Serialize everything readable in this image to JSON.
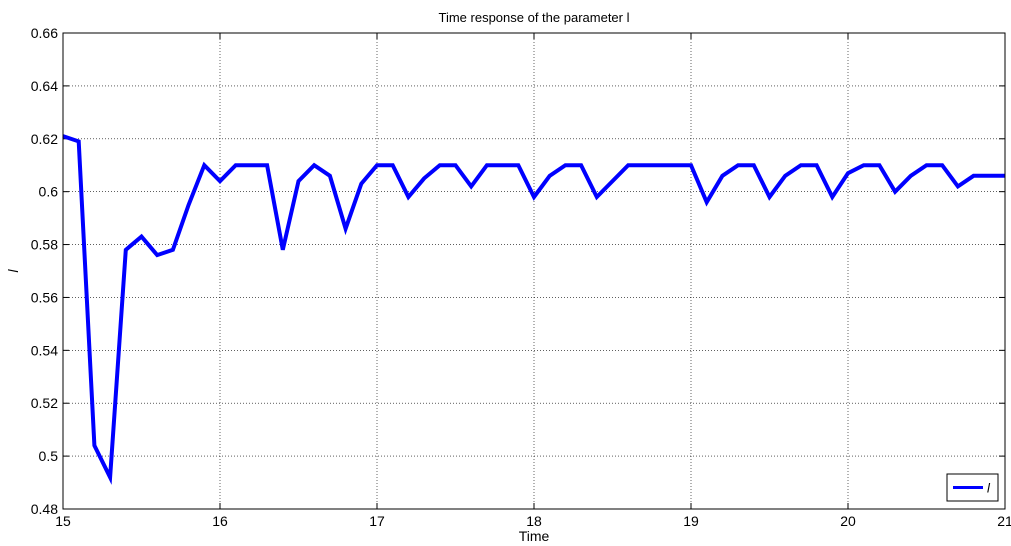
{
  "chart_data": {
    "type": "line",
    "title": "Time response of the parameter l",
    "xlabel": "Time",
    "ylabel": "l",
    "xlim": [
      15,
      21
    ],
    "ylim": [
      0.48,
      0.66
    ],
    "xticks": [
      15,
      16,
      17,
      18,
      19,
      20,
      21
    ],
    "yticks": [
      0.48,
      0.5,
      0.52,
      0.54,
      0.56,
      0.58,
      0.6,
      0.62,
      0.64,
      0.66
    ],
    "xtick_labels": [
      "15",
      "16",
      "17",
      "18",
      "19",
      "20",
      "21"
    ],
    "ytick_labels": [
      "0.48",
      "0.5",
      "0.52",
      "0.54",
      "0.56",
      "0.58",
      "0.6",
      "0.62",
      "0.64",
      "0.66"
    ],
    "grid": true,
    "legend_position": "bottom-right",
    "colors": {
      "series": "#0000ff",
      "axes": "#000000",
      "background": "#ffffff"
    },
    "series": [
      {
        "name": "l",
        "x": [
          15.0,
          15.1,
          15.2,
          15.3,
          15.4,
          15.5,
          15.6,
          15.7,
          15.8,
          15.9,
          16.0,
          16.1,
          16.2,
          16.3,
          16.4,
          16.5,
          16.6,
          16.7,
          16.8,
          16.9,
          17.0,
          17.1,
          17.2,
          17.3,
          17.4,
          17.5,
          17.6,
          17.7,
          17.8,
          17.9,
          18.0,
          18.1,
          18.2,
          18.3,
          18.4,
          18.5,
          18.6,
          18.7,
          18.8,
          18.9,
          19.0,
          19.1,
          19.2,
          19.3,
          19.4,
          19.5,
          19.6,
          19.7,
          19.8,
          19.9,
          20.0,
          20.1,
          20.2,
          20.3,
          20.4,
          20.5,
          20.6,
          20.7,
          20.8,
          20.9,
          21.0
        ],
        "y": [
          0.621,
          0.619,
          0.504,
          0.492,
          0.578,
          0.583,
          0.576,
          0.578,
          0.595,
          0.61,
          0.604,
          0.61,
          0.61,
          0.61,
          0.578,
          0.604,
          0.61,
          0.606,
          0.586,
          0.603,
          0.61,
          0.61,
          0.598,
          0.605,
          0.61,
          0.61,
          0.602,
          0.61,
          0.61,
          0.61,
          0.598,
          0.606,
          0.61,
          0.61,
          0.598,
          0.604,
          0.61,
          0.61,
          0.61,
          0.61,
          0.61,
          0.596,
          0.606,
          0.61,
          0.61,
          0.598,
          0.606,
          0.61,
          0.61,
          0.598,
          0.607,
          0.61,
          0.61,
          0.6,
          0.606,
          0.61,
          0.61,
          0.602,
          0.606,
          0.606,
          0.606
        ]
      }
    ]
  }
}
